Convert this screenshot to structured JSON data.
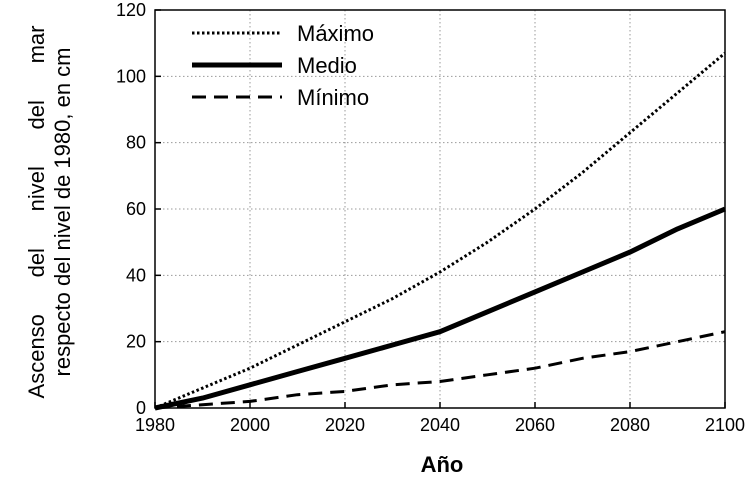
{
  "chart_data": {
    "type": "line",
    "xlabel": "Año",
    "ylabel": "Ascenso del nivel del mar respecto del nivel de 1980, en cm",
    "ylabel_lines": [
      "Ascenso      del      nivel      del      mar",
      "respecto del nivel de 1980, en cm"
    ],
    "x": [
      1980,
      1990,
      2000,
      2010,
      2020,
      2030,
      2040,
      2050,
      2060,
      2070,
      2080,
      2090,
      2100
    ],
    "xlim": [
      1980,
      2100
    ],
    "ylim": [
      0,
      120
    ],
    "xticks": [
      "1980",
      "2000",
      "2020",
      "2040",
      "2060",
      "2080",
      "2100"
    ],
    "yticks": [
      "0",
      "20",
      "40",
      "60",
      "80",
      "100",
      "120"
    ],
    "grid": true,
    "legend_position": "top-left",
    "series": [
      {
        "name": "Máximo",
        "style": "dotted",
        "values": [
          0,
          6,
          12,
          19,
          26,
          33,
          41,
          50,
          60,
          71,
          83,
          95,
          107
        ]
      },
      {
        "name": "Medio",
        "style": "solid",
        "values": [
          0,
          3,
          7,
          11,
          15,
          19,
          23,
          29,
          35,
          41,
          47,
          54,
          60
        ]
      },
      {
        "name": "Mínimo",
        "style": "dashed",
        "values": [
          0,
          1,
          2,
          4,
          5,
          7,
          8,
          10,
          12,
          15,
          17,
          20,
          23
        ]
      }
    ]
  }
}
